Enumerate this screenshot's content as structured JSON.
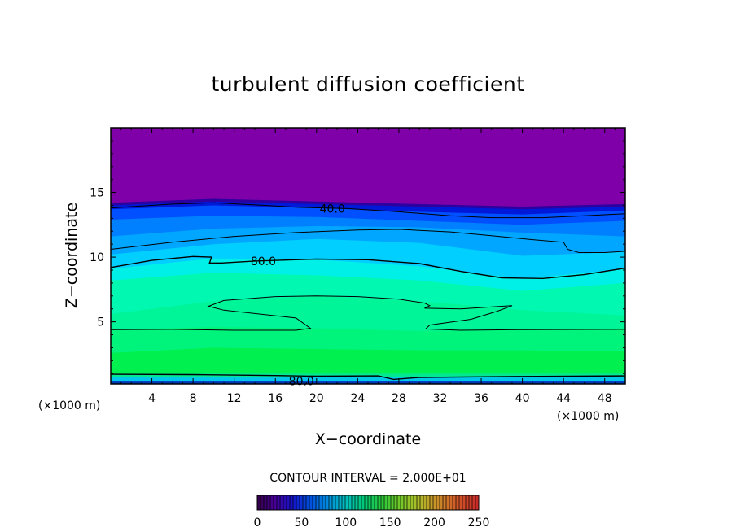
{
  "chart_data": {
    "type": "heatmap",
    "title": "turbulent diffusion coefficient",
    "xlabel": "X−coordinate",
    "ylabel": "Z−coordinate",
    "x_unit_left": "(×1000 m)",
    "x_unit_right": "(×1000 m)",
    "xlim": [
      0,
      50
    ],
    "ylim": [
      0.2,
      20
    ],
    "x_ticks": [
      4,
      8,
      12,
      16,
      20,
      24,
      28,
      32,
      36,
      40,
      44,
      48
    ],
    "x_tick_labels": [
      "4",
      "8",
      "12",
      "16",
      "20",
      "24",
      "28",
      "32",
      "36",
      "40",
      "44",
      "48"
    ],
    "y_ticks": [
      5,
      10,
      15
    ],
    "y_tick_labels": [
      "5",
      "10",
      "15"
    ],
    "contour_interval_label": "CONTOUR INTERVAL = 2.000E+01",
    "contour_interval": 20,
    "colorbar": {
      "min": 0,
      "max": 250,
      "tick_values": [
        0,
        50,
        100,
        150,
        200,
        250
      ],
      "tick_labels": [
        "0",
        "50",
        "100",
        "150",
        "200",
        "250"
      ]
    },
    "bands": [
      {
        "level": 0,
        "color": "#7f00a8",
        "top": [
          [
            0,
            20
          ],
          [
            50,
            20
          ]
        ]
      },
      {
        "level": 20,
        "color": "#2d00a0",
        "top": [
          [
            0,
            14.2
          ],
          [
            10,
            14.5
          ],
          [
            20,
            14.3
          ],
          [
            30,
            14.1
          ],
          [
            40,
            13.9
          ],
          [
            50,
            14.1
          ]
        ]
      },
      {
        "level": 30,
        "color": "#0018d8",
        "top": [
          [
            0,
            14.0
          ],
          [
            10,
            14.3
          ],
          [
            20,
            14.1
          ],
          [
            30,
            13.9
          ],
          [
            40,
            13.7
          ],
          [
            50,
            13.9
          ]
        ]
      },
      {
        "level": 40,
        "color": "#0050ff",
        "top": [
          [
            0,
            13.7
          ],
          [
            10,
            14.0
          ],
          [
            20,
            13.8
          ],
          [
            30,
            13.5
          ],
          [
            40,
            13.3
          ],
          [
            50,
            13.6
          ]
        ]
      },
      {
        "level": 55,
        "color": "#0080ff",
        "top": [
          [
            0,
            12.9
          ],
          [
            10,
            13.2
          ],
          [
            20,
            13.1
          ],
          [
            30,
            12.8
          ],
          [
            40,
            12.5
          ],
          [
            50,
            12.8
          ]
        ]
      },
      {
        "level": 65,
        "color": "#00a6ff",
        "top": [
          [
            0,
            11.6
          ],
          [
            10,
            12.2
          ],
          [
            20,
            12.4
          ],
          [
            30,
            12.3
          ],
          [
            40,
            11.9
          ],
          [
            50,
            11.6
          ]
        ]
      },
      {
        "level": 75,
        "color": "#00cfff",
        "top": [
          [
            0,
            10.2
          ],
          [
            10,
            11.0
          ],
          [
            20,
            11.4
          ],
          [
            30,
            11.1
          ],
          [
            40,
            10.1
          ],
          [
            50,
            10.4
          ]
        ]
      },
      {
        "level": 85,
        "color": "#00f0e8",
        "top": [
          [
            0,
            9.1
          ],
          [
            10,
            9.9
          ],
          [
            20,
            9.8
          ],
          [
            30,
            9.3
          ],
          [
            40,
            8.3
          ],
          [
            50,
            9.1
          ]
        ]
      },
      {
        "level": 95,
        "color": "#00f8b0",
        "top": [
          [
            0,
            8.2
          ],
          [
            10,
            8.8
          ],
          [
            20,
            8.6
          ],
          [
            30,
            8.2
          ],
          [
            40,
            7.4
          ],
          [
            50,
            8.0
          ]
        ]
      },
      {
        "level": 100,
        "color": "#00f498",
        "top": [
          [
            0,
            5.6
          ],
          [
            10,
            6.6
          ],
          [
            20,
            7.0
          ],
          [
            30,
            6.6
          ],
          [
            40,
            5.9
          ],
          [
            50,
            5.5
          ]
        ]
      },
      {
        "level": 110,
        "color": "#00f47c",
        "top": [
          [
            0,
            4.4
          ],
          [
            10,
            4.6
          ],
          [
            20,
            4.5
          ],
          [
            30,
            4.3
          ],
          [
            40,
            4.4
          ],
          [
            50,
            4.5
          ]
        ]
      },
      {
        "level": 120,
        "color": "#00f050",
        "top": [
          [
            0,
            2.6
          ],
          [
            10,
            3.0
          ],
          [
            20,
            2.9
          ],
          [
            30,
            2.8
          ],
          [
            40,
            2.8
          ],
          [
            50,
            2.7
          ]
        ]
      },
      {
        "level": 100,
        "color": "#00e890",
        "top": [
          [
            0,
            1.0
          ],
          [
            50,
            1.0
          ]
        ]
      },
      {
        "level": 80,
        "color": "#00c8e8",
        "top": [
          [
            0,
            0.7
          ],
          [
            50,
            0.7
          ]
        ]
      },
      {
        "level": 40,
        "color": "#0040c8",
        "top": [
          [
            0,
            0.45
          ],
          [
            50,
            0.45
          ]
        ]
      }
    ],
    "contours": [
      {
        "level": 40,
        "label": "40.0",
        "label_at": [
          20.3,
          13.75
        ],
        "points": [
          [
            0,
            13.8
          ],
          [
            6,
            14.1
          ],
          [
            10,
            14.2
          ],
          [
            15,
            14.0
          ],
          [
            18,
            13.85
          ],
          [
            23,
            13.75
          ],
          [
            28,
            13.5
          ],
          [
            33,
            13.2
          ],
          [
            37,
            13.05
          ],
          [
            42,
            13.05
          ],
          [
            46,
            13.2
          ],
          [
            50,
            13.35
          ]
        ]
      },
      {
        "level": 60,
        "points": [
          [
            0,
            10.6
          ],
          [
            6,
            11.15
          ],
          [
            12,
            11.6
          ],
          [
            18,
            11.9
          ],
          [
            24,
            12.1
          ],
          [
            28,
            12.15
          ],
          [
            33,
            11.95
          ],
          [
            37,
            11.65
          ],
          [
            41,
            11.35
          ],
          [
            44,
            11.15
          ],
          [
            44.4,
            10.6
          ],
          [
            45.5,
            10.35
          ],
          [
            48,
            10.35
          ],
          [
            50,
            10.45
          ]
        ]
      },
      {
        "level": 80,
        "label": "80.0",
        "label_at": [
          13.6,
          9.7
        ],
        "points": [
          [
            0,
            9.2
          ],
          [
            4,
            9.75
          ],
          [
            8,
            10.05
          ],
          [
            9.8,
            10.0
          ],
          [
            9.6,
            9.55
          ],
          [
            10.8,
            9.55
          ],
          [
            14,
            9.7
          ],
          [
            20,
            9.85
          ],
          [
            25,
            9.8
          ],
          [
            30,
            9.5
          ],
          [
            34,
            8.9
          ],
          [
            38,
            8.4
          ],
          [
            42,
            8.35
          ],
          [
            46,
            8.65
          ],
          [
            50,
            9.15
          ]
        ]
      },
      {
        "level": 100,
        "points": [
          [
            0,
            4.4
          ],
          [
            6,
            4.42
          ],
          [
            12,
            4.35
          ],
          [
            18,
            4.35
          ],
          [
            19.4,
            4.5
          ],
          [
            18,
            5.3
          ],
          [
            11,
            5.9
          ],
          [
            9.5,
            6.2
          ],
          [
            11,
            6.65
          ],
          [
            16,
            6.95
          ],
          [
            20,
            7.0
          ],
          [
            24,
            6.95
          ],
          [
            28,
            6.75
          ],
          [
            30.5,
            6.45
          ],
          [
            31,
            6.25
          ],
          [
            30.5,
            6.05
          ],
          [
            34,
            6.0
          ],
          [
            38,
            6.2
          ],
          [
            39,
            6.25
          ],
          [
            37.5,
            5.8
          ],
          [
            35,
            5.2
          ],
          [
            31,
            4.75
          ],
          [
            30.6,
            4.45
          ],
          [
            34,
            4.35
          ],
          [
            40,
            4.4
          ],
          [
            50,
            4.42
          ]
        ]
      },
      {
        "level": 80,
        "label": "80.0",
        "label_at": [
          17.3,
          0.42
        ],
        "points": [
          [
            0,
            0.95
          ],
          [
            8,
            0.92
          ],
          [
            16,
            0.85
          ],
          [
            20,
            0.8
          ],
          [
            26,
            0.82
          ],
          [
            27.5,
            0.55
          ],
          [
            30,
            0.7
          ],
          [
            40,
            0.78
          ],
          [
            50,
            0.82
          ]
        ]
      },
      {
        "level": 40,
        "points": [
          [
            0,
            0.35
          ],
          [
            50,
            0.35
          ]
        ]
      }
    ]
  }
}
